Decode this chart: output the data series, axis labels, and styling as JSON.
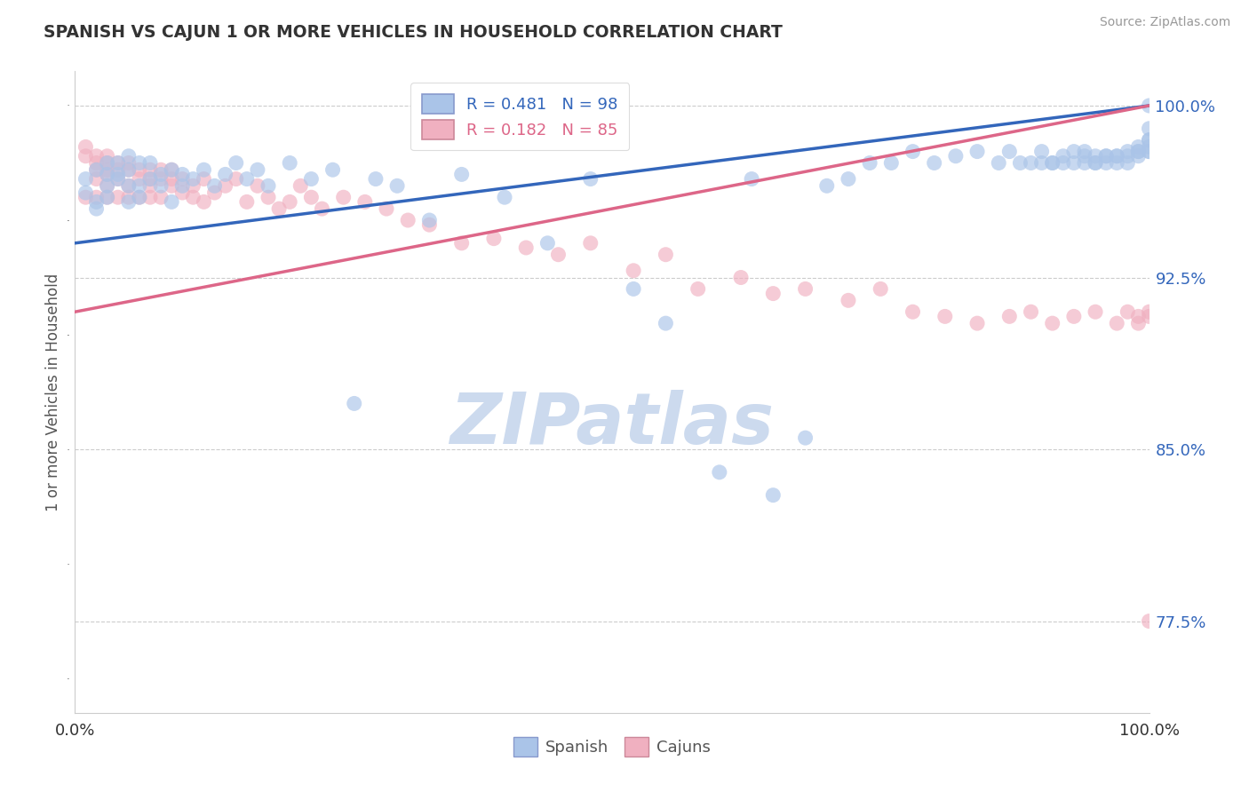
{
  "title": "SPANISH VS CAJUN 1 OR MORE VEHICLES IN HOUSEHOLD CORRELATION CHART",
  "source_text": "Source: ZipAtlas.com",
  "ylabel": "1 or more Vehicles in Household",
  "xlim": [
    0.0,
    1.0
  ],
  "ylim": [
    0.735,
    1.015
  ],
  "yticks": [
    0.775,
    0.85,
    0.925,
    1.0
  ],
  "ytick_labels": [
    "77.5%",
    "85.0%",
    "92.5%",
    "100.0%"
  ],
  "background": "#ffffff",
  "watermark": "ZIPatlas",
  "watermark_color": "#ccdaee",
  "legend_R_spanish": "R = 0.481",
  "legend_N_spanish": "N = 98",
  "legend_R_cajun": "R = 0.182",
  "legend_N_cajun": "N = 85",
  "spanish_color": "#aac4e8",
  "cajun_color": "#f0b0c0",
  "spanish_line_color": "#3366bb",
  "cajun_line_color": "#dd6688",
  "dot_size": 150,
  "spanish_x": [
    0.01,
    0.01,
    0.02,
    0.02,
    0.02,
    0.03,
    0.03,
    0.03,
    0.03,
    0.04,
    0.04,
    0.04,
    0.05,
    0.05,
    0.05,
    0.05,
    0.06,
    0.06,
    0.06,
    0.07,
    0.07,
    0.08,
    0.08,
    0.09,
    0.09,
    0.1,
    0.1,
    0.11,
    0.12,
    0.13,
    0.14,
    0.15,
    0.16,
    0.17,
    0.18,
    0.2,
    0.22,
    0.24,
    0.26,
    0.28,
    0.3,
    0.33,
    0.36,
    0.4,
    0.44,
    0.48,
    0.52,
    0.55,
    0.6,
    0.63,
    0.65,
    0.68,
    0.7,
    0.72,
    0.74,
    0.76,
    0.78,
    0.8,
    0.82,
    0.84,
    0.86,
    0.87,
    0.88,
    0.89,
    0.9,
    0.9,
    0.91,
    0.91,
    0.92,
    0.92,
    0.93,
    0.93,
    0.94,
    0.94,
    0.94,
    0.95,
    0.95,
    0.95,
    0.96,
    0.96,
    0.96,
    0.97,
    0.97,
    0.97,
    0.98,
    0.98,
    0.98,
    0.99,
    0.99,
    0.99,
    0.99,
    1.0,
    1.0,
    1.0,
    1.0,
    1.0,
    1.0,
    1.0
  ],
  "spanish_y": [
    0.968,
    0.962,
    0.955,
    0.972,
    0.958,
    0.965,
    0.97,
    0.975,
    0.96,
    0.97,
    0.975,
    0.968,
    0.965,
    0.958,
    0.972,
    0.978,
    0.965,
    0.975,
    0.96,
    0.968,
    0.975,
    0.965,
    0.97,
    0.958,
    0.972,
    0.965,
    0.97,
    0.968,
    0.972,
    0.965,
    0.97,
    0.975,
    0.968,
    0.972,
    0.965,
    0.975,
    0.968,
    0.972,
    0.87,
    0.968,
    0.965,
    0.95,
    0.97,
    0.96,
    0.94,
    0.968,
    0.92,
    0.905,
    0.84,
    0.968,
    0.83,
    0.855,
    0.965,
    0.968,
    0.975,
    0.975,
    0.98,
    0.975,
    0.978,
    0.98,
    0.975,
    0.98,
    0.975,
    0.975,
    0.975,
    0.98,
    0.975,
    0.975,
    0.978,
    0.975,
    0.98,
    0.975,
    0.978,
    0.975,
    0.98,
    0.975,
    0.978,
    0.975,
    0.978,
    0.978,
    0.975,
    0.978,
    0.978,
    0.975,
    0.98,
    0.978,
    0.975,
    0.98,
    0.982,
    0.98,
    0.978,
    0.982,
    0.985,
    0.98,
    0.985,
    0.98,
    0.99,
    1.0
  ],
  "cajun_x": [
    0.01,
    0.01,
    0.01,
    0.02,
    0.02,
    0.02,
    0.02,
    0.02,
    0.03,
    0.03,
    0.03,
    0.03,
    0.03,
    0.03,
    0.04,
    0.04,
    0.04,
    0.04,
    0.05,
    0.05,
    0.05,
    0.05,
    0.06,
    0.06,
    0.06,
    0.07,
    0.07,
    0.07,
    0.07,
    0.08,
    0.08,
    0.08,
    0.09,
    0.09,
    0.09,
    0.1,
    0.1,
    0.11,
    0.11,
    0.12,
    0.12,
    0.13,
    0.14,
    0.15,
    0.16,
    0.17,
    0.18,
    0.19,
    0.2,
    0.21,
    0.22,
    0.23,
    0.25,
    0.27,
    0.29,
    0.31,
    0.33,
    0.36,
    0.39,
    0.42,
    0.45,
    0.48,
    0.52,
    0.55,
    0.58,
    0.62,
    0.65,
    0.68,
    0.72,
    0.75,
    0.78,
    0.81,
    0.84,
    0.87,
    0.89,
    0.91,
    0.93,
    0.95,
    0.97,
    0.98,
    0.99,
    0.99,
    1.0,
    1.0,
    1.0
  ],
  "cajun_y": [
    0.978,
    0.982,
    0.96,
    0.978,
    0.968,
    0.972,
    0.96,
    0.975,
    0.97,
    0.975,
    0.965,
    0.972,
    0.96,
    0.978,
    0.968,
    0.975,
    0.96,
    0.972,
    0.965,
    0.975,
    0.96,
    0.972,
    0.968,
    0.972,
    0.96,
    0.968,
    0.965,
    0.972,
    0.96,
    0.968,
    0.972,
    0.96,
    0.968,
    0.965,
    0.972,
    0.962,
    0.968,
    0.96,
    0.965,
    0.958,
    0.968,
    0.962,
    0.965,
    0.968,
    0.958,
    0.965,
    0.96,
    0.955,
    0.958,
    0.965,
    0.96,
    0.955,
    0.96,
    0.958,
    0.955,
    0.95,
    0.948,
    0.94,
    0.942,
    0.938,
    0.935,
    0.94,
    0.928,
    0.935,
    0.92,
    0.925,
    0.918,
    0.92,
    0.915,
    0.92,
    0.91,
    0.908,
    0.905,
    0.908,
    0.91,
    0.905,
    0.908,
    0.91,
    0.905,
    0.91,
    0.908,
    0.905,
    0.908,
    0.91,
    0.775
  ],
  "spanish_trend_x": [
    0.0,
    1.0
  ],
  "spanish_trend_y": [
    0.94,
    1.0
  ],
  "cajun_trend_x": [
    0.0,
    1.0
  ],
  "cajun_trend_y": [
    0.91,
    1.0
  ]
}
